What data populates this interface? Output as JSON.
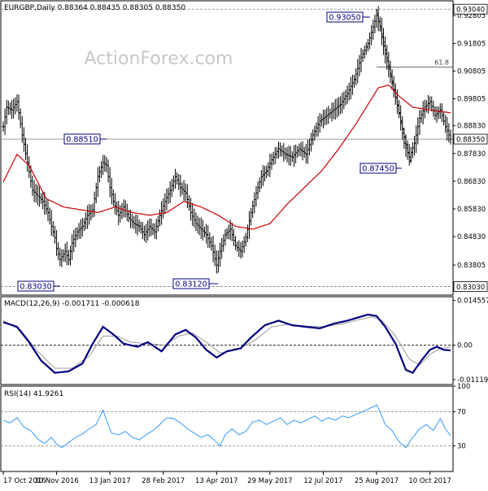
{
  "chart_data": {
    "type": "ohlc",
    "symbol_header": "EURGBP,Daily  0.88364 0.88435 0.88305 0.88350",
    "watermark": "ActionForex.com",
    "price_ticks": [
      "0.92805",
      "0.91805",
      "0.90805",
      "0.89805",
      "0.88830",
      "0.87830",
      "0.86830",
      "0.85830",
      "0.84830",
      "0.83805"
    ],
    "price_tick_values": [
      0.92805,
      0.91805,
      0.90805,
      0.89805,
      0.8883,
      0.8783,
      0.8683,
      0.8583,
      0.8483,
      0.83805
    ],
    "date_labels": [
      "17 Oct 2016",
      "30 Nov 2016",
      "13 Jan 2017",
      "28 Feb 2017",
      "13 Apr 2017",
      "29 May 2017",
      "12 Jul 2017",
      "25 Aug 2017",
      "10 Oct 2017"
    ],
    "date_label_index": [
      0,
      31,
      62,
      93,
      124,
      155,
      186,
      217,
      248
    ],
    "ylim": [
      0.8272,
      0.9334
    ],
    "levels": [
      {
        "label": "0.93040",
        "value": 0.9304
      },
      {
        "label": "0.88350",
        "value": 0.8835
      },
      {
        "label": "0.83030",
        "value": 0.8303
      }
    ],
    "fib_label": "61.8",
    "fib_value": 0.9095,
    "annotations": [
      {
        "label": "0.93050",
        "value": 0.9305,
        "index": 217
      },
      {
        "label": "0.88510",
        "value": 0.8851,
        "index": 58
      },
      {
        "label": "0.87450",
        "value": 0.8745,
        "index": 237
      },
      {
        "label": "0.83030",
        "value": 0.8303,
        "index": 31
      },
      {
        "label": "0.83120",
        "value": 0.8312,
        "index": 124
      }
    ],
    "close_anchors": [
      [
        0,
        0.888
      ],
      [
        2,
        0.895
      ],
      [
        5,
        0.894
      ],
      [
        8,
        0.897
      ],
      [
        11,
        0.885
      ],
      [
        14,
        0.875
      ],
      [
        17,
        0.865
      ],
      [
        20,
        0.863
      ],
      [
        23,
        0.861
      ],
      [
        26,
        0.857
      ],
      [
        28,
        0.852
      ],
      [
        30,
        0.848
      ],
      [
        31,
        0.844
      ],
      [
        33,
        0.84
      ],
      [
        36,
        0.843
      ],
      [
        38,
        0.84
      ],
      [
        40,
        0.846
      ],
      [
        43,
        0.85
      ],
      [
        46,
        0.852
      ],
      [
        49,
        0.856
      ],
      [
        52,
        0.858
      ],
      [
        55,
        0.87
      ],
      [
        58,
        0.875
      ],
      [
        60,
        0.874
      ],
      [
        62,
        0.866
      ],
      [
        64,
        0.861
      ],
      [
        67,
        0.856
      ],
      [
        70,
        0.859
      ],
      [
        73,
        0.855
      ],
      [
        76,
        0.853
      ],
      [
        79,
        0.852
      ],
      [
        82,
        0.849
      ],
      [
        85,
        0.852
      ],
      [
        88,
        0.85
      ],
      [
        91,
        0.856
      ],
      [
        94,
        0.861
      ],
      [
        97,
        0.865
      ],
      [
        100,
        0.87
      ],
      [
        103,
        0.866
      ],
      [
        106,
        0.864
      ],
      [
        109,
        0.857
      ],
      [
        112,
        0.853
      ],
      [
        115,
        0.851
      ],
      [
        118,
        0.849
      ],
      [
        121,
        0.845
      ],
      [
        124,
        0.838
      ],
      [
        126,
        0.843
      ],
      [
        129,
        0.849
      ],
      [
        132,
        0.851
      ],
      [
        135,
        0.845
      ],
      [
        138,
        0.843
      ],
      [
        141,
        0.848
      ],
      [
        144,
        0.857
      ],
      [
        147,
        0.864
      ],
      [
        150,
        0.87
      ],
      [
        153,
        0.872
      ],
      [
        156,
        0.876
      ],
      [
        160,
        0.88
      ],
      [
        164,
        0.878
      ],
      [
        168,
        0.877
      ],
      [
        172,
        0.88
      ],
      [
        176,
        0.878
      ],
      [
        180,
        0.885
      ],
      [
        184,
        0.89
      ],
      [
        188,
        0.892
      ],
      [
        192,
        0.894
      ],
      [
        196,
        0.896
      ],
      [
        200,
        0.9
      ],
      [
        204,
        0.905
      ],
      [
        208,
        0.913
      ],
      [
        212,
        0.918
      ],
      [
        215,
        0.924
      ],
      [
        217,
        0.928
      ],
      [
        219,
        0.924
      ],
      [
        221,
        0.917
      ],
      [
        224,
        0.909
      ],
      [
        227,
        0.901
      ],
      [
        230,
        0.893
      ],
      [
        233,
        0.882
      ],
      [
        236,
        0.877
      ],
      [
        239,
        0.882
      ],
      [
        242,
        0.891
      ],
      [
        245,
        0.895
      ],
      [
        248,
        0.897
      ],
      [
        251,
        0.892
      ],
      [
        254,
        0.894
      ],
      [
        257,
        0.888
      ],
      [
        260,
        0.8835
      ]
    ],
    "ma_anchors": [
      [
        0,
        0.868
      ],
      [
        8,
        0.878
      ],
      [
        15,
        0.874
      ],
      [
        25,
        0.862
      ],
      [
        35,
        0.859
      ],
      [
        45,
        0.858
      ],
      [
        55,
        0.857
      ],
      [
        65,
        0.859
      ],
      [
        75,
        0.857
      ],
      [
        85,
        0.856
      ],
      [
        95,
        0.857
      ],
      [
        105,
        0.861
      ],
      [
        115,
        0.859
      ],
      [
        125,
        0.856
      ],
      [
        135,
        0.852
      ],
      [
        145,
        0.851
      ],
      [
        155,
        0.853
      ],
      [
        165,
        0.86
      ],
      [
        175,
        0.866
      ],
      [
        185,
        0.872
      ],
      [
        195,
        0.88
      ],
      [
        205,
        0.889
      ],
      [
        213,
        0.897
      ],
      [
        218,
        0.902
      ],
      [
        224,
        0.903
      ],
      [
        230,
        0.899
      ],
      [
        238,
        0.895
      ],
      [
        248,
        0.894
      ],
      [
        260,
        0.893
      ]
    ],
    "macd": {
      "header": "MACD(12,26,9) -0.001711 -0.000618",
      "ticks": [
        "0.014557",
        "0.00",
        "-0.011197"
      ],
      "tick_values": [
        0.014557,
        0,
        -0.011197
      ],
      "ylim": [
        -0.0128,
        0.0158
      ],
      "line_anchors": [
        [
          0,
          0.0075
        ],
        [
          8,
          0.006
        ],
        [
          15,
          0.001
        ],
        [
          22,
          -0.005
        ],
        [
          30,
          -0.009
        ],
        [
          38,
          -0.0085
        ],
        [
          46,
          -0.006
        ],
        [
          52,
          0.0005
        ],
        [
          58,
          0.006
        ],
        [
          64,
          0.0035
        ],
        [
          70,
          0.0005
        ],
        [
          78,
          -0.0005
        ],
        [
          84,
          0.001
        ],
        [
          92,
          -0.002
        ],
        [
          100,
          0.0035
        ],
        [
          106,
          0.005
        ],
        [
          112,
          0.0025
        ],
        [
          118,
          -0.0015
        ],
        [
          124,
          -0.004
        ],
        [
          130,
          -0.002
        ],
        [
          138,
          -0.001
        ],
        [
          144,
          0.0025
        ],
        [
          152,
          0.0065
        ],
        [
          160,
          0.008
        ],
        [
          168,
          0.0065
        ],
        [
          176,
          0.006
        ],
        [
          184,
          0.0055
        ],
        [
          192,
          0.007
        ],
        [
          200,
          0.008
        ],
        [
          206,
          0.009
        ],
        [
          212,
          0.01
        ],
        [
          217,
          0.0095
        ],
        [
          222,
          0.006
        ],
        [
          228,
          0.0005
        ],
        [
          234,
          -0.008
        ],
        [
          238,
          -0.009
        ],
        [
          243,
          -0.005
        ],
        [
          248,
          -0.0015
        ],
        [
          252,
          -0.0005
        ],
        [
          256,
          -0.0015
        ],
        [
          260,
          -0.0017
        ]
      ],
      "signal_anchors": [
        [
          0,
          0.008
        ],
        [
          10,
          0.005
        ],
        [
          20,
          -0.002
        ],
        [
          30,
          -0.0075
        ],
        [
          40,
          -0.0075
        ],
        [
          50,
          -0.0035
        ],
        [
          58,
          0.003
        ],
        [
          66,
          0.003
        ],
        [
          74,
          0.001
        ],
        [
          84,
          0.0005
        ],
        [
          94,
          0.0
        ],
        [
          102,
          0.003
        ],
        [
          110,
          0.004
        ],
        [
          118,
          0.001
        ],
        [
          126,
          -0.0025
        ],
        [
          136,
          -0.0015
        ],
        [
          146,
          0.0015
        ],
        [
          156,
          0.006
        ],
        [
          166,
          0.0068
        ],
        [
          176,
          0.0062
        ],
        [
          186,
          0.006
        ],
        [
          196,
          0.0068
        ],
        [
          206,
          0.0082
        ],
        [
          214,
          0.0092
        ],
        [
          220,
          0.0082
        ],
        [
          228,
          0.003
        ],
        [
          236,
          -0.0045
        ],
        [
          242,
          -0.0065
        ],
        [
          248,
          -0.003
        ],
        [
          254,
          -0.001
        ],
        [
          260,
          -0.0006
        ]
      ]
    },
    "rsi": {
      "header": "RSI(14) 41.9261",
      "ticks": [
        "100",
        "70",
        "30",
        "0"
      ],
      "tick_values": [
        100,
        70,
        30,
        0
      ],
      "ylim": [
        0,
        100
      ],
      "anchors": [
        [
          0,
          60
        ],
        [
          4,
          57
        ],
        [
          8,
          63
        ],
        [
          12,
          52
        ],
        [
          16,
          48
        ],
        [
          20,
          38
        ],
        [
          24,
          33
        ],
        [
          28,
          40
        ],
        [
          31,
          32
        ],
        [
          34,
          28
        ],
        [
          38,
          34
        ],
        [
          42,
          40
        ],
        [
          46,
          44
        ],
        [
          50,
          50
        ],
        [
          54,
          55
        ],
        [
          58,
          72
        ],
        [
          60,
          60
        ],
        [
          63,
          45
        ],
        [
          67,
          43
        ],
        [
          71,
          47
        ],
        [
          75,
          40
        ],
        [
          79,
          37
        ],
        [
          83,
          43
        ],
        [
          87,
          48
        ],
        [
          91,
          55
        ],
        [
          95,
          63
        ],
        [
          99,
          62
        ],
        [
          103,
          57
        ],
        [
          107,
          50
        ],
        [
          111,
          45
        ],
        [
          115,
          40
        ],
        [
          119,
          43
        ],
        [
          123,
          36
        ],
        [
          126,
          30
        ],
        [
          129,
          43
        ],
        [
          133,
          50
        ],
        [
          137,
          43
        ],
        [
          141,
          47
        ],
        [
          145,
          58
        ],
        [
          149,
          60
        ],
        [
          153,
          55
        ],
        [
          157,
          59
        ],
        [
          161,
          63
        ],
        [
          165,
          55
        ],
        [
          169,
          60
        ],
        [
          173,
          57
        ],
        [
          177,
          61
        ],
        [
          181,
          65
        ],
        [
          185,
          59
        ],
        [
          189,
          63
        ],
        [
          193,
          60
        ],
        [
          197,
          65
        ],
        [
          201,
          63
        ],
        [
          205,
          67
        ],
        [
          209,
          70
        ],
        [
          213,
          74
        ],
        [
          217,
          78
        ],
        [
          219,
          70
        ],
        [
          222,
          55
        ],
        [
          226,
          48
        ],
        [
          230,
          35
        ],
        [
          234,
          28
        ],
        [
          238,
          40
        ],
        [
          242,
          50
        ],
        [
          246,
          55
        ],
        [
          250,
          48
        ],
        [
          254,
          62
        ],
        [
          257,
          50
        ],
        [
          260,
          42
        ]
      ]
    }
  }
}
